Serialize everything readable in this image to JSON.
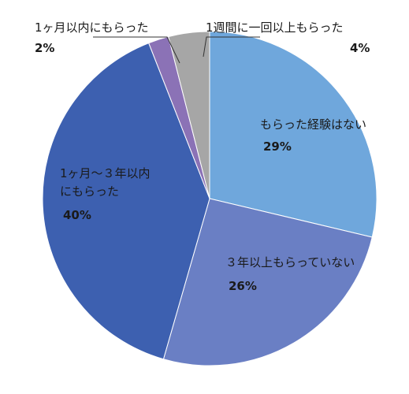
{
  "chart_data": {
    "type": "pie",
    "title": "",
    "start": "top",
    "direction": "clockwise",
    "slices": [
      {
        "label": "もらった経験はない",
        "value": 29,
        "value_label": "29%",
        "color": "#6fa7dc"
      },
      {
        "label": "３年以上もらっていない",
        "value": 26,
        "value_label": "26%",
        "color": "#6a7fc4"
      },
      {
        "label": "1ヶ月～３年以内にもらった",
        "label_lines": [
          "1ヶ月～３年以内",
          "にもらった"
        ],
        "value": 40,
        "value_label": "40%",
        "color": "#3d60b0"
      },
      {
        "label": "1ヶ月以内にもらった",
        "value": 2,
        "value_label": "2%",
        "color": "#8b72b6"
      },
      {
        "label": "1週間に一回以上もらった",
        "value": 4,
        "value_label": "4%",
        "color": "#a6a6a6"
      }
    ]
  }
}
